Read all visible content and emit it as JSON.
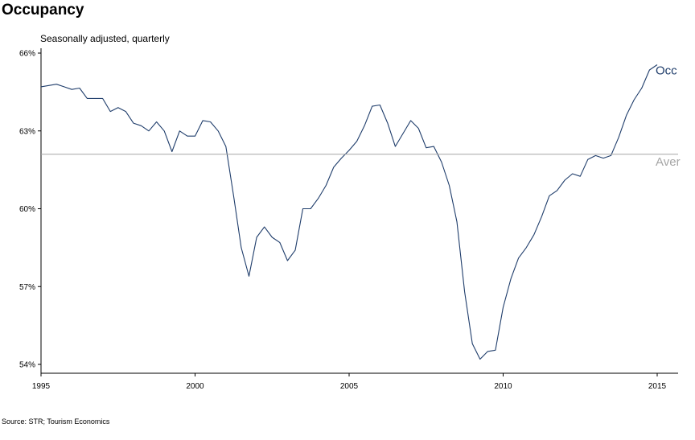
{
  "header": {
    "title": "Occupancy",
    "subtitle": "Seasonally adjusted, quarterly"
  },
  "footer": {
    "source": "Source: STR; Tourism Economics"
  },
  "chart_data": {
    "type": "line",
    "title": "Occupancy",
    "subtitle": "Seasonally adjusted, quarterly",
    "xlabel": "",
    "ylabel": "",
    "xlim": [
      1995,
      2015.7
    ],
    "ylim": [
      53.7,
      66.1
    ],
    "grid": false,
    "y_ticks": [
      {
        "value": 54,
        "label": "54%"
      },
      {
        "value": 57,
        "label": "57%"
      },
      {
        "value": 60,
        "label": "60%"
      },
      {
        "value": 63,
        "label": "63%"
      },
      {
        "value": 66,
        "label": "66%"
      }
    ],
    "x_ticks": [
      {
        "value": 1995,
        "label": "1995"
      },
      {
        "value": 2000,
        "label": "2000"
      },
      {
        "value": 2005,
        "label": "2005"
      },
      {
        "value": 2010,
        "label": "2010"
      },
      {
        "value": 2015,
        "label": "2015"
      }
    ],
    "series": [
      {
        "name": "Occ",
        "label": "Occ",
        "color": "#1f3d6b",
        "x": [
          1995.0,
          1995.25,
          1995.5,
          1995.75,
          1996.0,
          1996.25,
          1996.5,
          1996.75,
          1997.0,
          1997.25,
          1997.5,
          1997.75,
          1998.0,
          1998.25,
          1998.5,
          1998.75,
          1999.0,
          1999.25,
          1999.5,
          1999.75,
          2000.0,
          2000.25,
          2000.5,
          2000.75,
          2001.0,
          2001.25,
          2001.5,
          2001.75,
          2002.0,
          2002.25,
          2002.5,
          2002.75,
          2003.0,
          2003.25,
          2003.5,
          2003.75,
          2004.0,
          2004.25,
          2004.5,
          2004.75,
          2005.0,
          2005.25,
          2005.5,
          2005.75,
          2006.0,
          2006.25,
          2006.5,
          2006.75,
          2007.0,
          2007.25,
          2007.5,
          2007.75,
          2008.0,
          2008.25,
          2008.5,
          2008.75,
          2009.0,
          2009.25,
          2009.5,
          2009.75,
          2010.0,
          2010.25,
          2010.5,
          2010.75,
          2011.0,
          2011.25,
          2011.5,
          2011.75,
          2012.0,
          2012.25,
          2012.5,
          2012.75,
          2013.0,
          2013.25,
          2013.5,
          2013.75,
          2014.0,
          2014.25,
          2014.5,
          2014.75,
          2015.0
        ],
        "values": [
          64.7,
          64.75,
          64.8,
          64.7,
          64.6,
          64.65,
          64.25,
          64.25,
          64.25,
          63.75,
          63.9,
          63.75,
          63.3,
          63.2,
          63.0,
          63.35,
          63.0,
          62.2,
          63.0,
          62.8,
          62.8,
          63.4,
          63.35,
          63.0,
          62.4,
          60.5,
          58.5,
          57.4,
          58.9,
          59.3,
          58.9,
          58.7,
          58.0,
          58.4,
          60.0,
          60.0,
          60.4,
          60.9,
          61.6,
          61.95,
          62.25,
          62.6,
          63.2,
          63.95,
          64.0,
          63.3,
          62.4,
          62.9,
          63.4,
          63.1,
          62.35,
          62.4,
          61.8,
          60.9,
          59.5,
          56.8,
          54.8,
          54.2,
          54.5,
          54.55,
          56.2,
          57.3,
          58.1,
          58.5,
          59.0,
          59.7,
          60.5,
          60.7,
          61.1,
          61.35,
          61.25,
          61.9,
          62.05,
          61.95,
          62.05,
          62.75,
          63.6,
          64.2,
          64.65,
          65.35,
          65.55
        ]
      },
      {
        "name": "Average",
        "label": "Aver",
        "color": "#a6a6a6",
        "constant": 62.1
      }
    ]
  }
}
